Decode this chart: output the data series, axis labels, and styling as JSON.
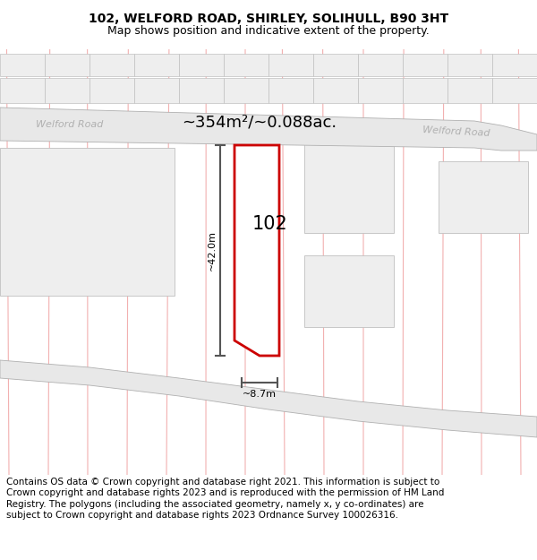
{
  "title_line1": "102, WELFORD ROAD, SHIRLEY, SOLIHULL, B90 3HT",
  "title_line2": "Map shows position and indicative extent of the property.",
  "footer_text": "Contains OS data © Crown copyright and database right 2021. This information is subject to Crown copyright and database rights 2023 and is reproduced with the permission of HM Land Registry. The polygons (including the associated geometry, namely x, y co-ordinates) are subject to Crown copyright and database rights 2023 Ordnance Survey 100026316.",
  "area_label": "~354m²/~0.088ac.",
  "road_label": "Welford Road",
  "property_label": "102",
  "dim_height": "~42.0m",
  "dim_width": "~8.7m",
  "bg_color": "#ffffff",
  "map_bg": "#ffffff",
  "road_fill": "#e8e8e8",
  "road_edge": "#b0b0b0",
  "grid_color": "#f2b0b0",
  "parcel_edge": "#c0c0c0",
  "parcel_fill": "#eeeeee",
  "property_outline": "#cc0000",
  "property_fill": "#ffffff",
  "dim_color": "#555555",
  "road_text_color": "#b0b0b0",
  "notch_fill": "#d0d0d0",
  "title_fontsize": 10,
  "subtitle_fontsize": 9,
  "footer_fontsize": 7.5
}
